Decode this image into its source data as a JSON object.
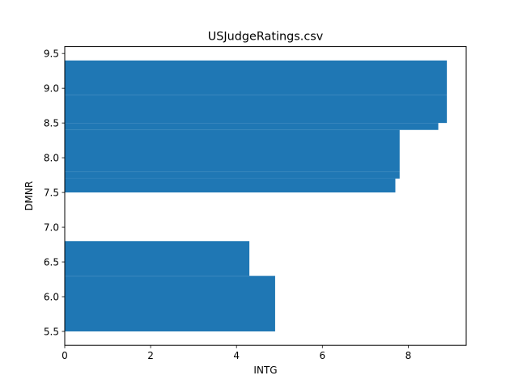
{
  "chart_data": {
    "type": "bar",
    "orientation": "horizontal",
    "title": "USJudgeRatings.csv",
    "xlabel": "INTG",
    "ylabel": "DMNR",
    "xlim": [
      0,
      9.35
    ],
    "ylim": [
      5.3,
      9.6
    ],
    "xticks": [
      0,
      2,
      4,
      6,
      8
    ],
    "yticks": [
      5.5,
      6.0,
      6.5,
      7.0,
      7.5,
      8.0,
      8.5,
      9.0,
      9.5
    ],
    "bar_color": "#1f77b4",
    "grid": false,
    "bars": [
      {
        "y0": 5.5,
        "y1": 6.3,
        "value": 4.9
      },
      {
        "y0": 6.3,
        "y1": 6.8,
        "value": 4.3
      },
      {
        "y0": 7.5,
        "y1": 7.7,
        "value": 7.7
      },
      {
        "y0": 7.7,
        "y1": 7.8,
        "value": 7.8
      },
      {
        "y0": 7.8,
        "y1": 8.4,
        "value": 7.8
      },
      {
        "y0": 8.4,
        "y1": 8.5,
        "value": 8.7
      },
      {
        "y0": 8.5,
        "y1": 8.9,
        "value": 8.9
      },
      {
        "y0": 8.9,
        "y1": 9.4,
        "value": 8.9
      }
    ]
  }
}
